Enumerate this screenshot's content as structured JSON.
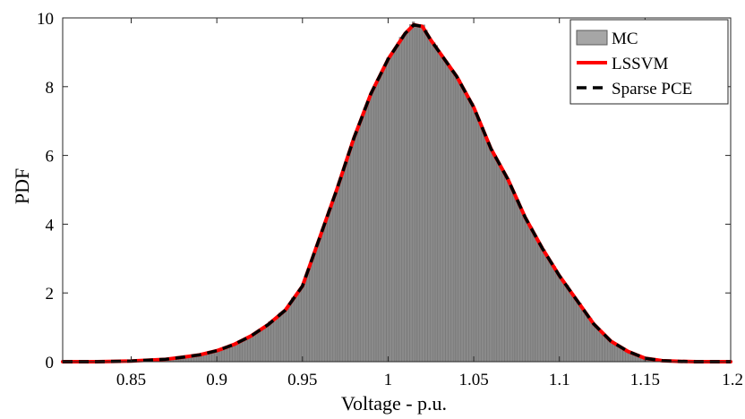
{
  "chart_data": {
    "type": "area",
    "xlabel": "Voltage - p.u.",
    "ylabel": "PDF",
    "xlim": [
      0.81,
      1.2
    ],
    "ylim": [
      0,
      10
    ],
    "xticks": [
      0.85,
      0.9,
      0.95,
      1,
      1.05,
      1.1,
      1.15,
      1.2
    ],
    "xtick_labels": [
      "0.85",
      "0.9",
      "0.95",
      "1",
      "1.05",
      "1.1",
      "1.15",
      "1.2"
    ],
    "yticks": [
      0,
      2,
      4,
      6,
      8,
      10
    ],
    "ytick_labels": [
      "0",
      "2",
      "4",
      "6",
      "8",
      "10"
    ],
    "legend_position": "top-right",
    "grid": false,
    "x": [
      0.81,
      0.83,
      0.85,
      0.87,
      0.88,
      0.89,
      0.9,
      0.91,
      0.92,
      0.93,
      0.94,
      0.95,
      0.96,
      0.97,
      0.98,
      0.99,
      1.0,
      1.01,
      1.015,
      1.02,
      1.025,
      1.03,
      1.04,
      1.05,
      1.06,
      1.07,
      1.08,
      1.09,
      1.1,
      1.11,
      1.12,
      1.13,
      1.14,
      1.15,
      1.16,
      1.17,
      1.18,
      1.2
    ],
    "series": [
      {
        "name": "MC",
        "style": "histogram",
        "color": "#808080",
        "values": [
          0.0,
          0.0,
          0.02,
          0.07,
          0.13,
          0.2,
          0.32,
          0.5,
          0.75,
          1.08,
          1.5,
          2.2,
          3.6,
          5.0,
          6.5,
          7.8,
          8.8,
          9.6,
          9.85,
          9.8,
          9.4,
          9.0,
          8.3,
          7.4,
          6.2,
          5.3,
          4.2,
          3.3,
          2.5,
          1.8,
          1.1,
          0.6,
          0.3,
          0.1,
          0.03,
          0.01,
          0.0,
          0.0
        ]
      },
      {
        "name": "LSSVM",
        "style": "line",
        "color": "#ff0000",
        "values": [
          0.0,
          0.0,
          0.02,
          0.07,
          0.13,
          0.2,
          0.32,
          0.5,
          0.75,
          1.08,
          1.5,
          2.2,
          3.6,
          5.0,
          6.5,
          7.8,
          8.8,
          9.55,
          9.8,
          9.75,
          9.35,
          9.0,
          8.3,
          7.4,
          6.2,
          5.3,
          4.2,
          3.3,
          2.5,
          1.8,
          1.1,
          0.6,
          0.3,
          0.1,
          0.03,
          0.01,
          0.0,
          0.0
        ]
      },
      {
        "name": "Sparse PCE",
        "style": "dashed-line",
        "color": "#000000",
        "values": [
          0.0,
          0.0,
          0.02,
          0.07,
          0.13,
          0.2,
          0.32,
          0.5,
          0.75,
          1.08,
          1.5,
          2.2,
          3.6,
          5.0,
          6.5,
          7.8,
          8.8,
          9.55,
          9.8,
          9.75,
          9.35,
          9.0,
          8.3,
          7.4,
          6.2,
          5.3,
          4.2,
          3.3,
          2.5,
          1.8,
          1.1,
          0.6,
          0.3,
          0.1,
          0.03,
          0.01,
          0.0,
          0.0
        ]
      }
    ]
  }
}
